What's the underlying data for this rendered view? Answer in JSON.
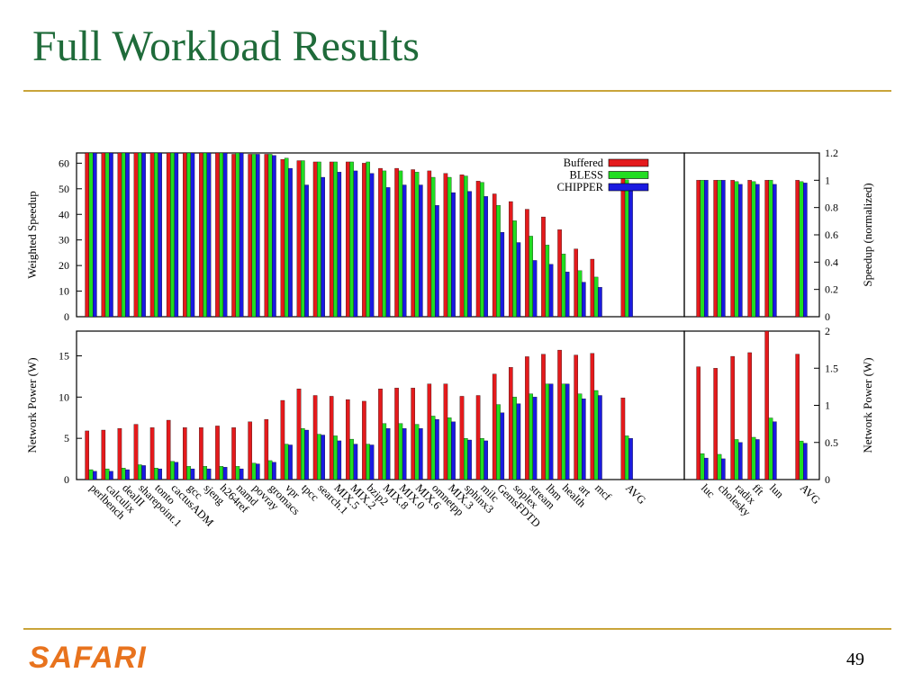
{
  "slide": {
    "title": "Full Workload Results",
    "footer_logo": "SAFARI",
    "page_number": "49"
  },
  "colors": {
    "Buffered": "#e41a1c",
    "BLESS": "#22dd22",
    "CHIPPER": "#1a1ae0",
    "title": "#1f6b3a",
    "rule": "#c9a43a",
    "logo": "#e8731e"
  },
  "chart_data": [
    {
      "type": "bar",
      "panel": "top-left",
      "ylabel": "Weighted Speedup",
      "ylim": [
        0,
        64
      ],
      "yticks": [
        "0",
        "10",
        "20",
        "30",
        "40",
        "50",
        "60"
      ],
      "legend_position": "top-right",
      "categories": [
        "perlbench",
        "calculix",
        "dealII",
        "sharepoint.1",
        "tonto",
        "cactusADM",
        "gcc",
        "sjeng",
        "h264ref",
        "namd",
        "povray",
        "gromacs",
        "vpr",
        "tpcc",
        "search.1",
        "MIX.5",
        "MIX.2",
        "bzip2",
        "MIX.8",
        "MIX.0",
        "MIX.6",
        "omnetpp",
        "MIX.3",
        "sphinx3",
        "milc",
        "GemsFDTD",
        "soplex",
        "stream",
        "lbm",
        "health",
        "art",
        "mcf",
        "AVG"
      ],
      "series": [
        {
          "name": "Buffered",
          "values": [
            64,
            64,
            64,
            64,
            64,
            64,
            64,
            64,
            64,
            63.5,
            63.5,
            63.5,
            61.5,
            61,
            60.5,
            60.5,
            60.5,
            60,
            58,
            58,
            57.5,
            57,
            56,
            55.5,
            53,
            48,
            45,
            42,
            39,
            34,
            26.5,
            22.5,
            55.5
          ]
        },
        {
          "name": "BLESS",
          "values": [
            64,
            64,
            64,
            64,
            64,
            64,
            64,
            64,
            64,
            64,
            63.5,
            63.5,
            62,
            61,
            60.5,
            60.5,
            60.5,
            60.5,
            57,
            57,
            56.5,
            54.5,
            54.5,
            55,
            52.5,
            43.5,
            37.5,
            31.5,
            28,
            24.5,
            18,
            15.5,
            53.5
          ]
        },
        {
          "name": "CHIPPER",
          "values": [
            64,
            64,
            64,
            64,
            64,
            64,
            64,
            64,
            64,
            64,
            63.5,
            63,
            58,
            51.5,
            54.5,
            56.5,
            57,
            56,
            50.5,
            51.5,
            51.5,
            43.5,
            48.5,
            49,
            47,
            33,
            29,
            22,
            20.5,
            17.5,
            13.5,
            11.5,
            49.5
          ]
        }
      ]
    },
    {
      "type": "bar",
      "panel": "top-right",
      "ylabel": "Speedup (normalized)",
      "ylim": [
        0,
        1.2
      ],
      "yticks": [
        "0",
        "0.2",
        "0.4",
        "0.6",
        "0.8",
        "1",
        "1.2"
      ],
      "categories": [
        "luc",
        "cholesky",
        "radix",
        "fft",
        "lun",
        "AVG"
      ],
      "series": [
        {
          "name": "Buffered",
          "values": [
            1.0,
            1.0,
            1.0,
            1.0,
            1.0,
            1.0
          ]
        },
        {
          "name": "BLESS",
          "values": [
            1.0,
            1.0,
            0.99,
            0.99,
            1.0,
            0.99
          ]
        },
        {
          "name": "CHIPPER",
          "values": [
            1.0,
            1.0,
            0.97,
            0.97,
            0.97,
            0.98
          ]
        }
      ]
    },
    {
      "type": "bar",
      "panel": "bottom-left",
      "ylabel": "Network Power (W)",
      "ylim": [
        0,
        18
      ],
      "yticks": [
        "0",
        "5",
        "10",
        "15"
      ],
      "categories": [
        "perlbench",
        "calculix",
        "dealII",
        "sharepoint.1",
        "tonto",
        "cactusADM",
        "gcc",
        "sjeng",
        "h264ref",
        "namd",
        "povray",
        "gromacs",
        "vpr",
        "tpcc",
        "search.1",
        "MIX.5",
        "MIX.2",
        "bzip2",
        "MIX.8",
        "MIX.0",
        "MIX.6",
        "omnetpp",
        "MIX.3",
        "sphinx3",
        "milc",
        "GemsFDTD",
        "soplex",
        "stream",
        "lbm",
        "health",
        "art",
        "mcf",
        "AVG"
      ],
      "series": [
        {
          "name": "Buffered",
          "values": [
            5.9,
            6.0,
            6.2,
            6.7,
            6.3,
            7.2,
            6.3,
            6.3,
            6.5,
            6.3,
            7.0,
            7.3,
            9.6,
            11.0,
            10.2,
            10.1,
            9.7,
            9.5,
            11.0,
            11.1,
            11.1,
            11.6,
            11.6,
            10.1,
            10.2,
            12.8,
            13.6,
            14.9,
            15.2,
            15.7,
            15.1,
            15.3,
            9.9
          ]
        },
        {
          "name": "BLESS",
          "values": [
            1.2,
            1.3,
            1.4,
            1.8,
            1.4,
            2.2,
            1.6,
            1.6,
            1.6,
            1.6,
            2.0,
            2.3,
            4.3,
            6.2,
            5.5,
            5.3,
            4.9,
            4.3,
            6.8,
            6.8,
            6.7,
            7.7,
            7.5,
            5.0,
            5.0,
            9.1,
            10.0,
            10.4,
            11.6,
            11.6,
            10.4,
            10.8,
            5.3
          ]
        },
        {
          "name": "CHIPPER",
          "values": [
            1.0,
            1.0,
            1.2,
            1.7,
            1.3,
            2.1,
            1.3,
            1.3,
            1.5,
            1.3,
            1.9,
            2.1,
            4.2,
            6.0,
            5.4,
            4.7,
            4.3,
            4.2,
            6.2,
            6.2,
            6.2,
            7.3,
            7.0,
            4.8,
            4.7,
            8.1,
            9.2,
            10.0,
            11.6,
            11.6,
            9.8,
            10.2,
            5.0
          ]
        }
      ]
    },
    {
      "type": "bar",
      "panel": "bottom-right",
      "ylabel": "Network Power (W)",
      "ylim": [
        0,
        2
      ],
      "yticks": [
        "0",
        "0.5",
        "1",
        "1.5",
        "2"
      ],
      "categories": [
        "luc",
        "cholesky",
        "radix",
        "fft",
        "lun",
        "AVG"
      ],
      "series": [
        {
          "name": "Buffered",
          "values": [
            1.52,
            1.5,
            1.66,
            1.71,
            2.07,
            1.69
          ]
        },
        {
          "name": "BLESS",
          "values": [
            0.35,
            0.34,
            0.54,
            0.57,
            0.83,
            0.52
          ]
        },
        {
          "name": "CHIPPER",
          "values": [
            0.29,
            0.28,
            0.5,
            0.54,
            0.78,
            0.49
          ]
        }
      ]
    }
  ]
}
